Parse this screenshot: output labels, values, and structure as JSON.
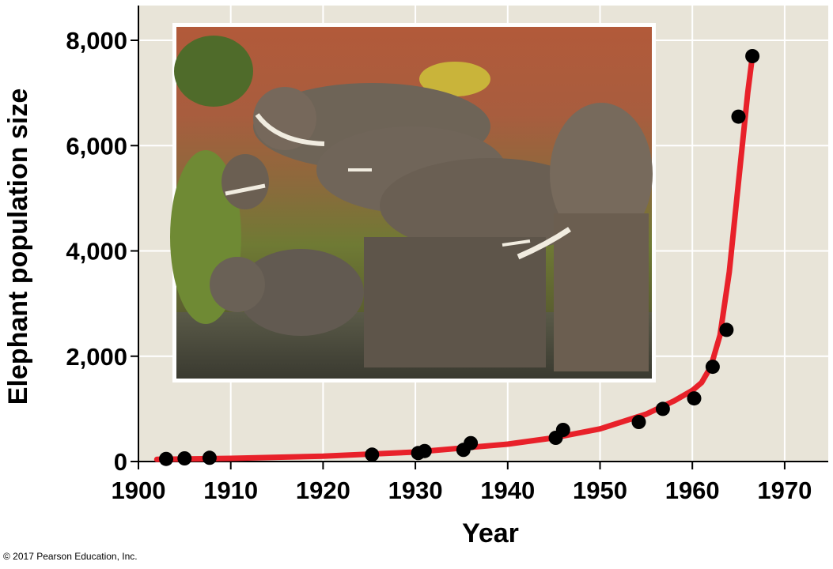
{
  "chart_data": {
    "type": "scatter",
    "xlabel": "Year",
    "ylabel": "Elephant population size",
    "xlim": [
      1900,
      1975
    ],
    "ylim": [
      0,
      8000
    ],
    "x_ticks": [
      1900,
      1910,
      1920,
      1930,
      1940,
      1950,
      1960,
      1970
    ],
    "x_tick_labels": [
      "1900",
      "1910",
      "1920",
      "1930",
      "1940",
      "1950",
      "1960",
      "1970"
    ],
    "y_ticks": [
      0,
      2000,
      4000,
      6000,
      8000
    ],
    "y_tick_labels": [
      "0",
      "2,000",
      "4,000",
      "6,000",
      "8,000"
    ],
    "grid": true,
    "series": [
      {
        "type": "scatter",
        "x": [
          1903,
          1905,
          1907.7,
          1925.3,
          1930.3,
          1931,
          1935.2,
          1936,
          1945.2,
          1946,
          1954.2,
          1956.8,
          1960.2,
          1962.2,
          1963.7,
          1965,
          1966.5
        ],
        "y": [
          50,
          60,
          70,
          130,
          160,
          200,
          220,
          350,
          450,
          600,
          750,
          1000,
          1200,
          1800,
          2500,
          6550,
          7700
        ]
      },
      {
        "type": "line",
        "x": [
          1902,
          1910,
          1920,
          1930,
          1940,
          1945,
          1950,
          1955,
          1958,
          1960,
          1961,
          1962,
          1963,
          1964,
          1965,
          1966,
          1966.5
        ],
        "y": [
          40,
          60,
          100,
          180,
          330,
          450,
          620,
          900,
          1150,
          1350,
          1500,
          1800,
          2400,
          3600,
          5300,
          7000,
          7700
        ]
      }
    ],
    "colors": {
      "plot_background": "#e8e4d8",
      "gridline": "#ffffff",
      "curve": "#e8212a",
      "points": "#000000"
    }
  },
  "copyright": "© 2017 Pearson Education, Inc."
}
